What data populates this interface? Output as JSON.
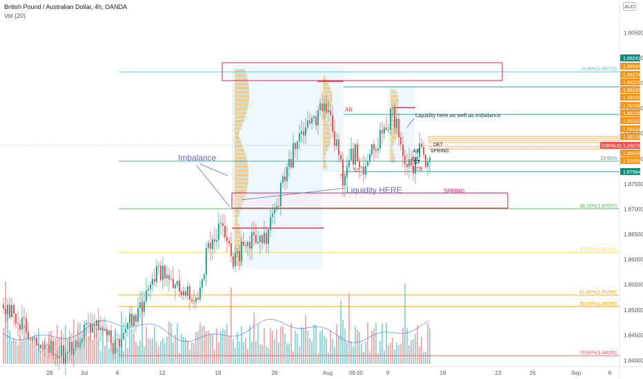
{
  "header": {
    "symbol_title": "British Pound / Australian Dollar, 4h, OANDA",
    "volume_title": "Vol (20)",
    "currency_badge": "AUD"
  },
  "symbol_tag": "GBPAUD",
  "colors": {
    "up": "#26a69a",
    "down": "#ef5350",
    "vol_up": "#7fd1d9",
    "vol_down": "#f4a0a0",
    "accent_orange": "#f7931a",
    "teal_badge": "#138c7e",
    "price_tag": "#ef5350",
    "fib_0": "#4ec3d1",
    "fib_236": "#26a69a",
    "fib_382": "#4caf50",
    "fib_50": "#f6d84b",
    "fib_618": "#ff9800",
    "fib_65": "#ff9800",
    "fib_786": "#ef5350",
    "zone_box": "#d81b60"
  },
  "price_axis": {
    "min": 1.837,
    "max": 1.9105,
    "ticks": [
      "1.90500",
      "1.90000",
      "1.89500",
      "1.89000",
      "1.88500",
      "1.88000",
      "1.87500",
      "1.87000",
      "1.86500",
      "1.86000",
      "1.85500",
      "1.85000",
      "1.84500",
      "1.84000"
    ]
  },
  "time_axis": {
    "labels": [
      "28",
      "Jul",
      "6",
      "12",
      "19",
      "26",
      "Aug",
      "09:00",
      "9",
      "16",
      "23",
      "26",
      "Sep",
      "6"
    ]
  },
  "fib_levels": [
    {
      "label": "0.00%(1.89722)",
      "price": 1.89722,
      "color_key": "fib_0"
    },
    {
      "label": "23.60%",
      "price": 1.8795,
      "color_key": "fib_236"
    },
    {
      "label": "38.20%(1.87007)",
      "price": 1.87007,
      "color_key": "fib_382"
    },
    {
      "label": "50.00%(1.86143)",
      "price": 1.86143,
      "color_key": "fib_50"
    },
    {
      "label": "61.80%(1.85298)",
      "price": 1.85298,
      "color_key": "fib_618"
    },
    {
      "label": "65.00%(1.85069)",
      "price": 1.85069,
      "color_key": "fib_65"
    },
    {
      "label": "78.60%(1.84095)",
      "price": 1.84095,
      "color_key": "fib_786"
    }
  ],
  "price_tags": [
    {
      "text": "1.89241",
      "price": 1.89241,
      "style": "teal"
    },
    {
      "text": "1.88684",
      "price": 1.88684,
      "style": "orange"
    },
    {
      "text": "1.88274",
      "price": 1.88274,
      "style": "orange"
    },
    {
      "text": "1.88229",
      "price": 1.88229,
      "style": "orange"
    },
    {
      "text": "1.88189",
      "price": 1.88189,
      "style": "orange"
    },
    {
      "text": "1.88168",
      "price": 1.88168,
      "style": "orange"
    },
    {
      "text": "1.88165",
      "price": 1.88165,
      "style": "orange"
    },
    {
      "text": "1.88120",
      "price": 1.8812,
      "style": "orange"
    },
    {
      "text": "1.88110",
      "price": 1.8811,
      "style": "orange"
    },
    {
      "text": "1.88110",
      "price": 1.8811,
      "style": "orange"
    },
    {
      "text": "1.88108",
      "price": 1.88108,
      "style": "orange"
    },
    {
      "text": "1.88079",
      "price": 1.88079,
      "style": "red"
    },
    {
      "text": "1.88043",
      "price": 1.88043,
      "style": "orange"
    },
    {
      "text": "1.88008",
      "price": 1.88008,
      "style": "orange"
    },
    {
      "text": "1.87564",
      "price": 1.87564,
      "style": "teal"
    }
  ],
  "annotations": {
    "imbalance": "Imbalance",
    "liquidity_here": "Liquidity HERE",
    "liquidity_imbalance": "Liquidity here as well as imbalance",
    "spring": "SPRING",
    "ar_left": "AR",
    "sc": "SC",
    "st_left": "ST",
    "ar_right": "AR",
    "st_right": "ST",
    "stb": "STB",
    "fs": "FS",
    "spring_small": "SPRING",
    "det": "DET"
  }
}
